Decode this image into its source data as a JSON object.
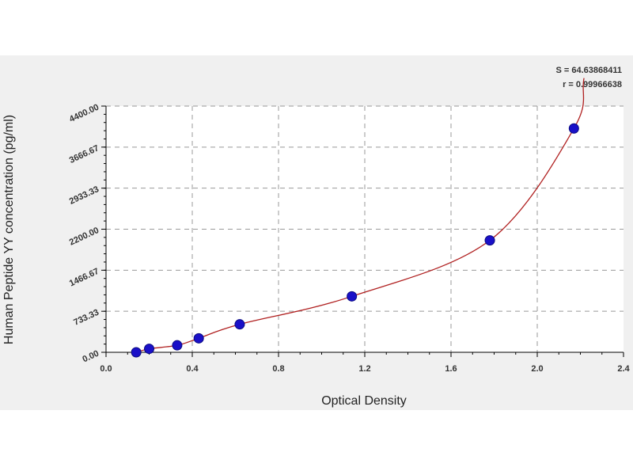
{
  "chart_data": {
    "type": "scatter",
    "title": "",
    "xlabel": "Optical Density",
    "ylabel": "Human Peptide YY concentration (pg/ml)",
    "xlim": [
      0,
      2.4
    ],
    "ylim": [
      0,
      4400
    ],
    "xticks": [
      "0.0",
      "0.4",
      "0.8",
      "1.2",
      "1.6",
      "2.0",
      "2.4"
    ],
    "yticks": [
      "0.00",
      "733.33",
      "1466.67",
      "2200.00",
      "2933.33",
      "3666.67",
      "4400.00"
    ],
    "grid": true,
    "points": [
      {
        "x": 0.14,
        "y": 0
      },
      {
        "x": 0.2,
        "y": 62.5
      },
      {
        "x": 0.33,
        "y": 125
      },
      {
        "x": 0.43,
        "y": 250
      },
      {
        "x": 0.62,
        "y": 500
      },
      {
        "x": 1.14,
        "y": 1000
      },
      {
        "x": 1.78,
        "y": 2000
      },
      {
        "x": 2.17,
        "y": 4000
      }
    ],
    "fit_line": true,
    "stats": {
      "s": "S = 64.63868411",
      "r": "r = 0.99966638"
    },
    "colors": {
      "points": "#1a10c8",
      "curve": "#b02020",
      "grid": "#999999",
      "background": "#f0f0f0"
    }
  }
}
